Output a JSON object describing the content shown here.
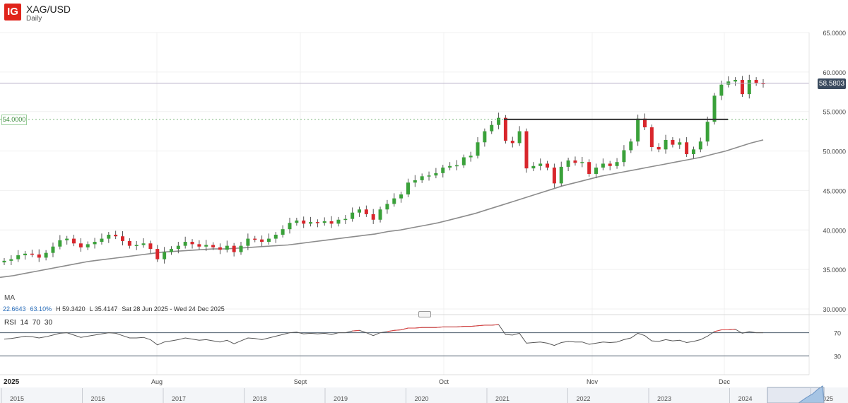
{
  "header": {
    "logo": "IG",
    "symbol": "XAG/USD",
    "interval": "Daily"
  },
  "indicators": {
    "ma_label": "MA",
    "stats": [
      "22.6643",
      "63.10%",
      "H 59.3420",
      "L 35.4147",
      "Sat 28 Jun 2025 - Wed 24 Dec 2025"
    ],
    "rsi": {
      "name": "RSI",
      "period": "14",
      "upper": "70",
      "lower": "30"
    }
  },
  "last_price_label": "58.5803",
  "level_label": "54.0000",
  "year_label": "2025",
  "colors": {
    "up": "#3aa13a",
    "down": "#d8262c",
    "ma": "#8c8c8c",
    "rsi": "#555555",
    "rsi_over": "#e04040",
    "resistance": "#333333",
    "last_price": "#3a4a5e"
  },
  "chart_data": {
    "type": "candlestick",
    "title": "XAG/USD",
    "ylim": [
      30,
      65
    ],
    "y_ticks": [
      "65.0000",
      "60.0000",
      "55.0000",
      "50.0000",
      "45.0000",
      "40.0000",
      "35.0000",
      "30.0000"
    ],
    "x_ticks": [
      "Aug",
      "Sept",
      "Oct",
      "Nov",
      "Dec"
    ],
    "rsi_ticks": [
      "70",
      "30"
    ],
    "resistance_level": 54.0,
    "last_price": 58.5803,
    "closes": [
      36.1,
      36.3,
      36.8,
      37.0,
      36.9,
      36.5,
      37.1,
      37.9,
      38.7,
      38.9,
      38.3,
      37.8,
      38.2,
      38.5,
      38.9,
      39.4,
      39.2,
      38.6,
      38.0,
      38.1,
      38.3,
      37.6,
      36.3,
      37.2,
      37.6,
      38.0,
      38.5,
      38.2,
      37.9,
      38.1,
      37.8,
      37.5,
      38.0,
      37.2,
      38.0,
      38.9,
      38.8,
      38.5,
      38.9,
      39.4,
      40.1,
      40.9,
      41.2,
      40.8,
      41.0,
      40.9,
      41.1,
      40.8,
      41.3,
      41.4,
      42.2,
      42.6,
      42.0,
      41.3,
      42.6,
      43.3,
      44.0,
      44.5,
      46.0,
      46.3,
      46.8,
      46.9,
      47.2,
      47.9,
      48.1,
      48.2,
      49.2,
      49.4,
      51.1,
      52.5,
      53.3,
      54.2,
      51.3,
      51.0,
      52.5,
      47.8,
      48.1,
      48.4,
      47.9,
      45.9,
      48.0,
      48.8,
      48.5,
      48.6,
      47.1,
      47.9,
      48.4,
      48.1,
      48.6,
      50.1,
      51.2,
      54.1,
      53.0,
      50.5,
      50.2,
      51.4,
      50.8,
      51.1,
      49.6,
      50.2,
      51.2,
      53.7,
      57.0,
      58.4,
      58.8,
      59.0,
      57.2,
      59.0,
      58.6,
      58.58
    ],
    "ma_values": [
      34.0,
      34.2,
      34.5,
      34.8,
      35.1,
      35.4,
      35.7,
      36.0,
      36.2,
      36.4,
      36.6,
      36.8,
      37.0,
      37.2,
      37.3,
      37.4,
      37.5,
      37.6,
      37.6,
      37.7,
      37.8,
      37.9,
      38.0,
      38.1,
      38.3,
      38.5,
      38.7,
      38.9,
      39.1,
      39.3,
      39.5,
      39.8,
      40.0,
      40.3,
      40.6,
      40.9,
      41.3,
      41.7,
      42.1,
      42.6,
      43.1,
      43.6,
      44.1,
      44.6,
      45.1,
      45.6,
      46.0,
      46.4,
      46.8,
      47.1,
      47.4,
      47.7,
      48.0,
      48.3,
      48.6,
      48.9,
      49.2,
      49.6,
      50.0,
      50.5,
      51.0,
      51.4
    ],
    "rsi_values": [
      59,
      60,
      62,
      64,
      63,
      61,
      63,
      66,
      69,
      70,
      66,
      62,
      64,
      66,
      68,
      70,
      69,
      65,
      61,
      61,
      62,
      58,
      49,
      54,
      56,
      58,
      61,
      59,
      57,
      58,
      56,
      54,
      57,
      51,
      56,
      61,
      60,
      58,
      61,
      64,
      67,
      70,
      71,
      68,
      69,
      68,
      69,
      67,
      70,
      70,
      73,
      74,
      70,
      65,
      70,
      72,
      74,
      75,
      78,
      78,
      79,
      79,
      79,
      80,
      80,
      80,
      81,
      81,
      82,
      83,
      83,
      84,
      67,
      66,
      69,
      52,
      53,
      54,
      52,
      48,
      53,
      55,
      54,
      54,
      50,
      52,
      54,
      53,
      54,
      58,
      61,
      69,
      65,
      56,
      55,
      58,
      56,
      57,
      53,
      55,
      58,
      64,
      72,
      75,
      75,
      76,
      69,
      72,
      70,
      70
    ]
  }
}
